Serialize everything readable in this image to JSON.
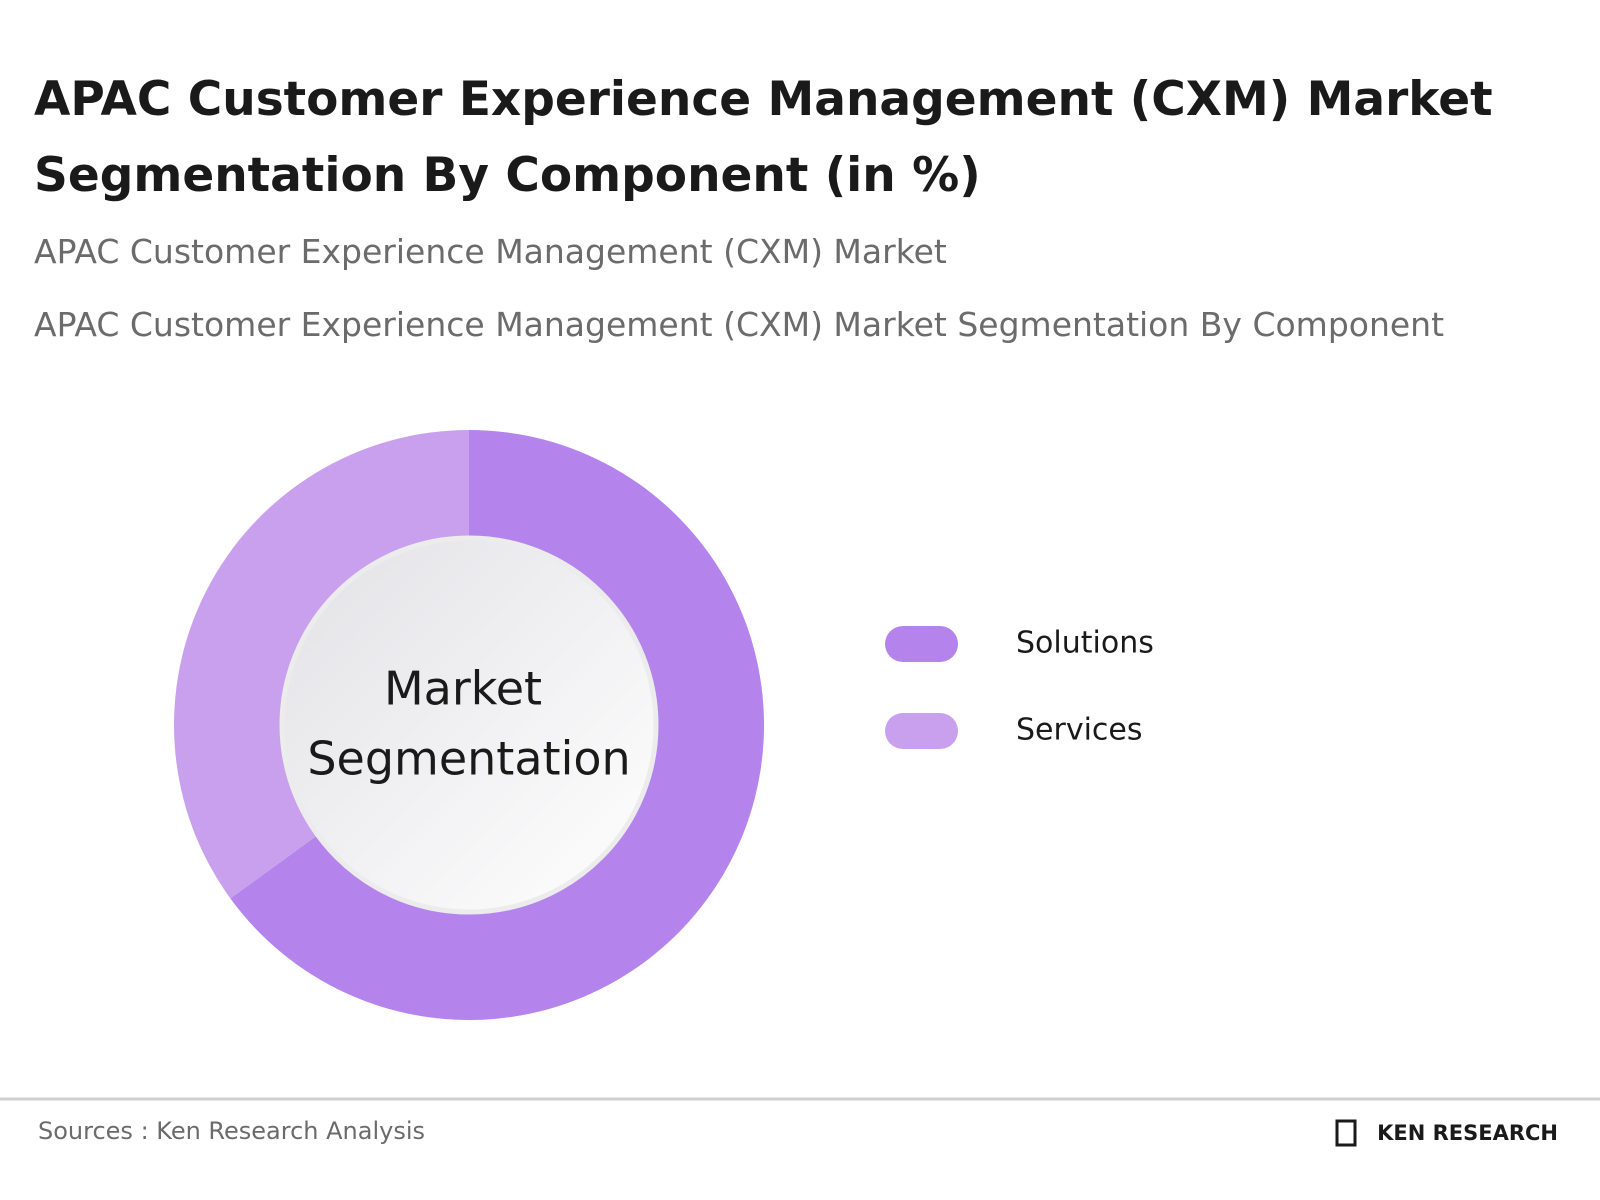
{
  "chart_data": {
    "type": "donut",
    "title": "APAC Customer Experience Management (CXM) Market Segmentation By Component (in %)",
    "subtitles": [
      "APAC Customer Experience Management (CXM) Market",
      "APAC Customer Experience Management (CXM) Market Segmentation By Component"
    ],
    "center_label": [
      "Market",
      "Segmentation"
    ],
    "categories": [
      "Solutions",
      "Services"
    ],
    "values": [
      65,
      35
    ],
    "colors": [
      "#b484ec",
      "#c9a0ee"
    ],
    "source": "Sources : Ken Research Analysis",
    "brand": "KEN RESEARCH"
  }
}
